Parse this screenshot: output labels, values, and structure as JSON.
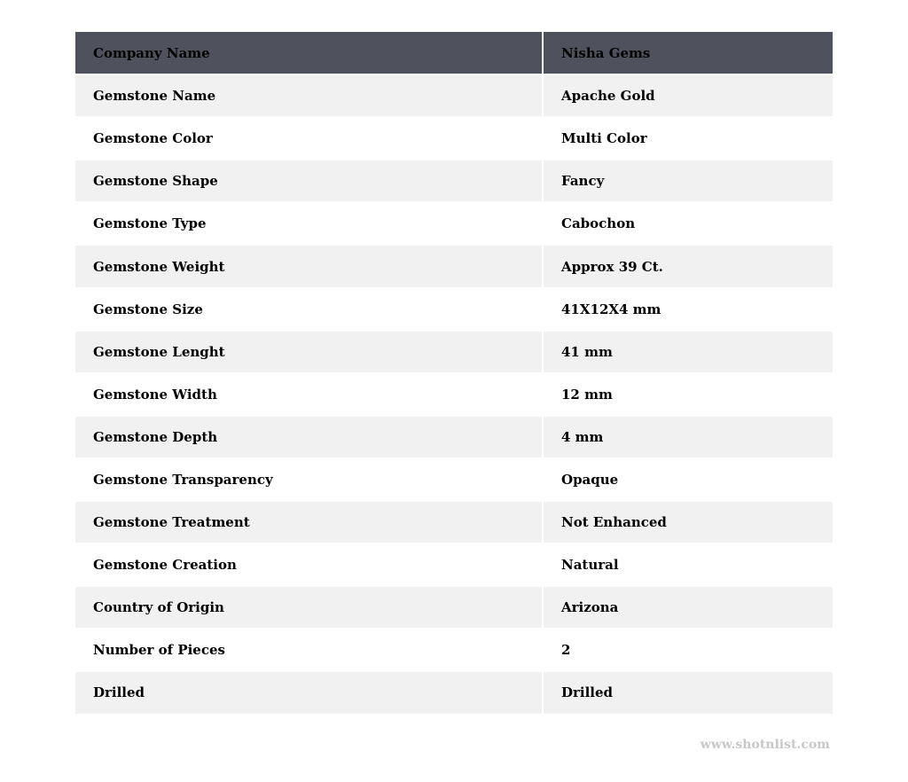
{
  "table": {
    "header": {
      "label": "Company Name",
      "value": "Nisha Gems"
    },
    "rows": [
      {
        "label": "Gemstone Name",
        "value": "Apache Gold"
      },
      {
        "label": "Gemstone Color",
        "value": "Multi Color"
      },
      {
        "label": "Gemstone Shape",
        "value": "Fancy"
      },
      {
        "label": "Gemstone Type",
        "value": "Cabochon"
      },
      {
        "label": "Gemstone Weight",
        "value": "Approx 39 Ct."
      },
      {
        "label": "Gemstone Size",
        "value": "41X12X4 mm"
      },
      {
        "label": "Gemstone Lenght",
        "value": "41 mm"
      },
      {
        "label": "Gemstone Width",
        "value": "12 mm"
      },
      {
        "label": "Gemstone Depth",
        "value": "4 mm"
      },
      {
        "label": "Gemstone Transparency",
        "value": "Opaque"
      },
      {
        "label": "Gemstone Treatment",
        "value": "Not Enhanced"
      },
      {
        "label": "Gemstone Creation",
        "value": "Natural"
      },
      {
        "label": "Country of Origin",
        "value": "Arizona"
      },
      {
        "label": "Number of Pieces",
        "value": "2"
      },
      {
        "label": "Drilled",
        "value": "Drilled"
      }
    ]
  },
  "watermark": "www.shotnlist.com",
  "colors": {
    "header_bg": "#4f515c",
    "stripe_bg": "#f1f1f1"
  }
}
